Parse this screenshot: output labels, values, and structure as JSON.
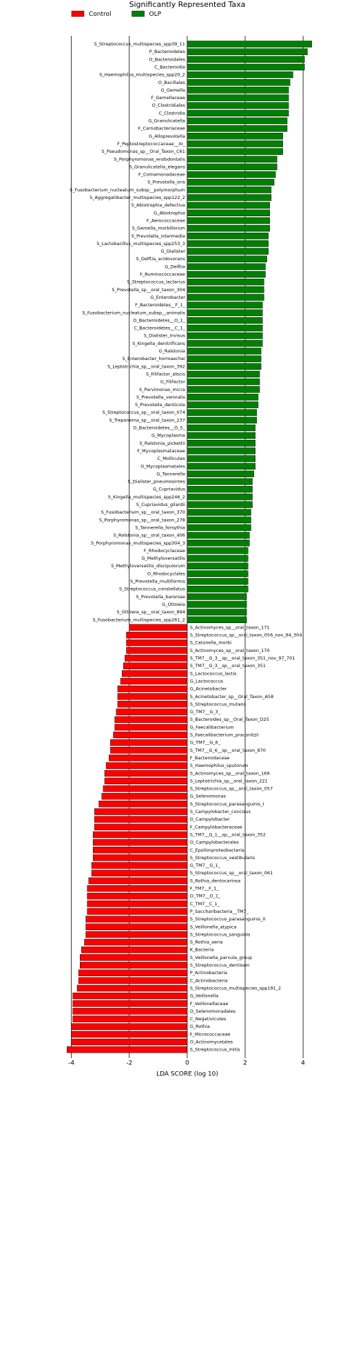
{
  "chart_data": {
    "type": "barh-diverging",
    "title": "Significantly Represented Taxa",
    "xlabel": "LDA SCORE (log 10)",
    "xlim": [
      -4.3,
      4.4
    ],
    "xticks": [
      -4,
      -2,
      0,
      2,
      4
    ],
    "grid": true,
    "legend": "upper left",
    "categories": [
      "S_Streptococcus_multispecies_spp39_11",
      "P_Bacteroidetes",
      "O_Bacteroidales",
      "C_Bacteroidia",
      "S_Haemophilus_multispecies_spp20_2",
      "O_Bacillales",
      "G_Gemella",
      "F_Gemellaceae",
      "O_Clostridiales",
      "C_Clostridia",
      "G_Granulicatella",
      "F_Carnobacteriaceae",
      "G_Alloprevotella",
      "F_Peptostreptococcaceae__XI_",
      "S_Pseudomonas_sp__Oral_Taxon_C61",
      "S_Porphyromonas_endodontalis",
      "S_Granulicatella_elegans",
      "F_Comamonadaceae",
      "S_Prevotella_oris",
      "S_Fusobacterium_nucleatum_subsp__polymorphum",
      "S_Aggregatibacter_multispecies_spp122_2",
      "S_Abiotrophia_defectiva",
      "G_Abiotrophia",
      "F_Aerococcaceae",
      "S_Gemella_morbillorum",
      "S_Prevotella_intermedia",
      "S_Lactobacillus_multispecies_spp253_3",
      "G_Dialister",
      "S_Delftia_acidovorans",
      "G_Delftia",
      "F_Ruminococcaceae",
      "S_Streptococcus_lactarius",
      "S_Prevotella_sp__oral_taxon_304",
      "G_Enterobacter",
      "F_Bacteroidetes__F_1_",
      "S_Fusobacterium_nucleatum_subsp__animalis",
      "O_Bacteroidetes__O_1_",
      "C_Bacteroidetes__C_1_",
      "S_Dialister_invisus",
      "S_Kingella_denitrificans",
      "G_Ralstonia",
      "S_Enterobacter_hormaechei",
      "S_Leptotrichia_sp__oral_taxon_392",
      "S_Filifactor_alocis",
      "G_Filifactor",
      "S_Parvimonas_micra",
      "S_Prevotella_veroralis",
      "S_Prevotella_denticola",
      "S_Streptococcus_sp__oral_taxon_074",
      "S_Treponema_sp__oral_taxon_237",
      "O_Bacteroidetes__O_5_",
      "G_Mycoplasma",
      "S_Ralstonia_pickettii",
      "F_Mycoplasmataceae",
      "C_Mollicutes",
      "O_Mycoplasmatales",
      "G_Tannerella",
      "S_Dialister_pneumosintes",
      "G_Cupriavidus",
      "S_Kingella_multispecies_spp246_2",
      "S_Cupriavidus_gilardii",
      "S_Fusobacterium_sp__oral_taxon_370",
      "S_Porphyromonas_sp__oral_taxon_278",
      "S_Tannerella_forsythia",
      "S_Ralstonia_sp__oral_taxon_406",
      "S_Porphyromonas_multispecies_spp304_3",
      "F_Rhodocyclaceae",
      "G_Methyloversatilis",
      "S_Methyloversatilis_discipulorum",
      "O_Rhodocyclales",
      "S_Prevotella_multiformis",
      "S_Streptococcus_constellatus",
      "S_Prevotella_baroniae",
      "G_Ottowia",
      "S_Ottowia_sp__oral_taxon_894",
      "S_Fusobacterium_multispecies_spp261_2",
      "S_Actinomyces_sp__oral_taxon_171",
      "S_Streptococcus_sp__oral_taxon_056_nov_94_304",
      "S_Catonella_morbi",
      "S_Actinomyces_sp__oral_taxon_170",
      "S_TM7__G_3__sp__oral_taxon_351_nov_97_701",
      "S_TM7__G_3__sp__oral_taxon_351",
      "S_Lactococcus_lactis",
      "G_Lactococcus",
      "G_Acinetobacter",
      "S_Acinetobacter_sp__Oral_Taxon_A58",
      "S_Streptococcus_mutans",
      "G_TM7__G_3_",
      "S_Bacteroides_sp__Oral_Taxon_D25",
      "G_Faecalibacterium",
      "S_Faecalibacterium_prausnitzii",
      "G_TM7__G_6_",
      "S_TM7__G_6__sp__oral_taxon_870",
      "F_Bacteroidaceae",
      "S_Haemophilus_sputorum",
      "S_Actinomyces_sp__oral_taxon_169",
      "S_Leptotrichia_sp__oral_taxon_221",
      "S_Streptococcus_sp__oral_taxon_057",
      "G_Selenomonas",
      "S_Streptococcus_parasanguinis_I",
      "S_Campylobacter_concisus",
      "G_Campylobacter",
      "F_Campylobacteraceae",
      "S_TM7__G_1__sp__oral_taxon_352",
      "O_Campylobacterales",
      "C_Epsilonproteobacteria",
      "S_Streptococcus_vestibularis",
      "G_TM7__G_1_",
      "S_Streptococcus_sp__oral_taxon_061",
      "S_Rothia_dentocariosa",
      "F_TM7__F_1_",
      "O_TM7__O_1_",
      "C_TM7__C_1_",
      "P_Saccharibacteria__TM7_",
      "S_Streptococcus_parasanguinis_II",
      "S_Veillonella_atypica",
      "S_Streptococcus_sanguinis",
      "S_Rothia_aeria",
      "K_Bacteria",
      "S_Veillonella_parvula_group",
      "S_Streptococcus_dentisani",
      "P_Actinobacteria",
      "C_Actinobacteria",
      "S_Streptococcus_multispecies_spp191_2",
      "G_Veillonella",
      "F_Veillonellaceae",
      "O_Selenomonadales",
      "C_Negativicutes",
      "G_Rothia",
      "F_Micrococcaceae",
      "O_Actinomycetales",
      "S_Streptococcus_mitis"
    ],
    "series": [
      {
        "name": "Control",
        "color": "#ff0000",
        "values": [
          null,
          null,
          null,
          null,
          null,
          null,
          null,
          null,
          null,
          null,
          null,
          null,
          null,
          null,
          null,
          null,
          null,
          null,
          null,
          null,
          null,
          null,
          null,
          null,
          null,
          null,
          null,
          null,
          null,
          null,
          null,
          null,
          null,
          null,
          null,
          null,
          null,
          null,
          null,
          null,
          null,
          null,
          null,
          null,
          null,
          null,
          null,
          null,
          null,
          null,
          null,
          null,
          null,
          null,
          null,
          null,
          null,
          null,
          null,
          null,
          null,
          null,
          null,
          null,
          null,
          null,
          null,
          null,
          null,
          null,
          null,
          null,
          null,
          null,
          null,
          null,
          -2.0,
          -2.1,
          -2.1,
          -2.1,
          -2.15,
          -2.2,
          -2.25,
          -2.3,
          -2.4,
          -2.4,
          -2.4,
          -2.45,
          -2.5,
          -2.5,
          -2.55,
          -2.65,
          -2.65,
          -2.7,
          -2.8,
          -2.85,
          -2.85,
          -2.9,
          -2.95,
          -3.05,
          -3.2,
          -3.2,
          -3.2,
          -3.25,
          -3.25,
          -3.25,
          -3.25,
          -3.3,
          -3.3,
          -3.4,
          -3.45,
          -3.45,
          -3.45,
          -3.45,
          -3.5,
          -3.5,
          -3.5,
          -3.55,
          -3.65,
          -3.7,
          -3.7,
          -3.75,
          -3.75,
          -3.8,
          -3.95,
          -3.95,
          -3.95,
          -3.95,
          -4.0,
          -4.0,
          -4.0,
          -4.15
        ]
      },
      {
        "name": "OLP",
        "color": "#008000",
        "values": [
          4.3,
          4.15,
          4.05,
          4.05,
          3.65,
          3.55,
          3.5,
          3.5,
          3.5,
          3.5,
          3.45,
          3.45,
          3.3,
          3.3,
          3.3,
          3.1,
          3.1,
          3.05,
          3.0,
          2.9,
          2.9,
          2.85,
          2.85,
          2.85,
          2.85,
          2.8,
          2.8,
          2.8,
          2.75,
          2.7,
          2.7,
          2.65,
          2.65,
          2.65,
          2.6,
          2.6,
          2.6,
          2.6,
          2.6,
          2.6,
          2.55,
          2.55,
          2.55,
          2.5,
          2.5,
          2.5,
          2.45,
          2.45,
          2.4,
          2.4,
          2.35,
          2.35,
          2.35,
          2.35,
          2.35,
          2.35,
          2.3,
          2.25,
          2.25,
          2.25,
          2.25,
          2.2,
          2.2,
          2.2,
          2.15,
          2.15,
          2.1,
          2.1,
          2.1,
          2.1,
          2.1,
          2.1,
          2.05,
          2.05,
          2.05,
          2.05,
          null,
          null,
          null,
          null,
          null,
          null,
          null,
          null,
          null,
          null,
          null,
          null,
          null,
          null,
          null,
          null,
          null,
          null,
          null,
          null,
          null,
          null,
          null,
          null,
          null,
          null,
          null,
          null,
          null,
          null,
          null,
          null,
          null,
          null,
          null,
          null,
          null,
          null,
          null,
          null,
          null,
          null,
          null,
          null,
          null,
          null,
          null,
          null,
          null,
          null,
          null,
          null,
          null,
          null,
          null,
          null
        ]
      }
    ]
  }
}
